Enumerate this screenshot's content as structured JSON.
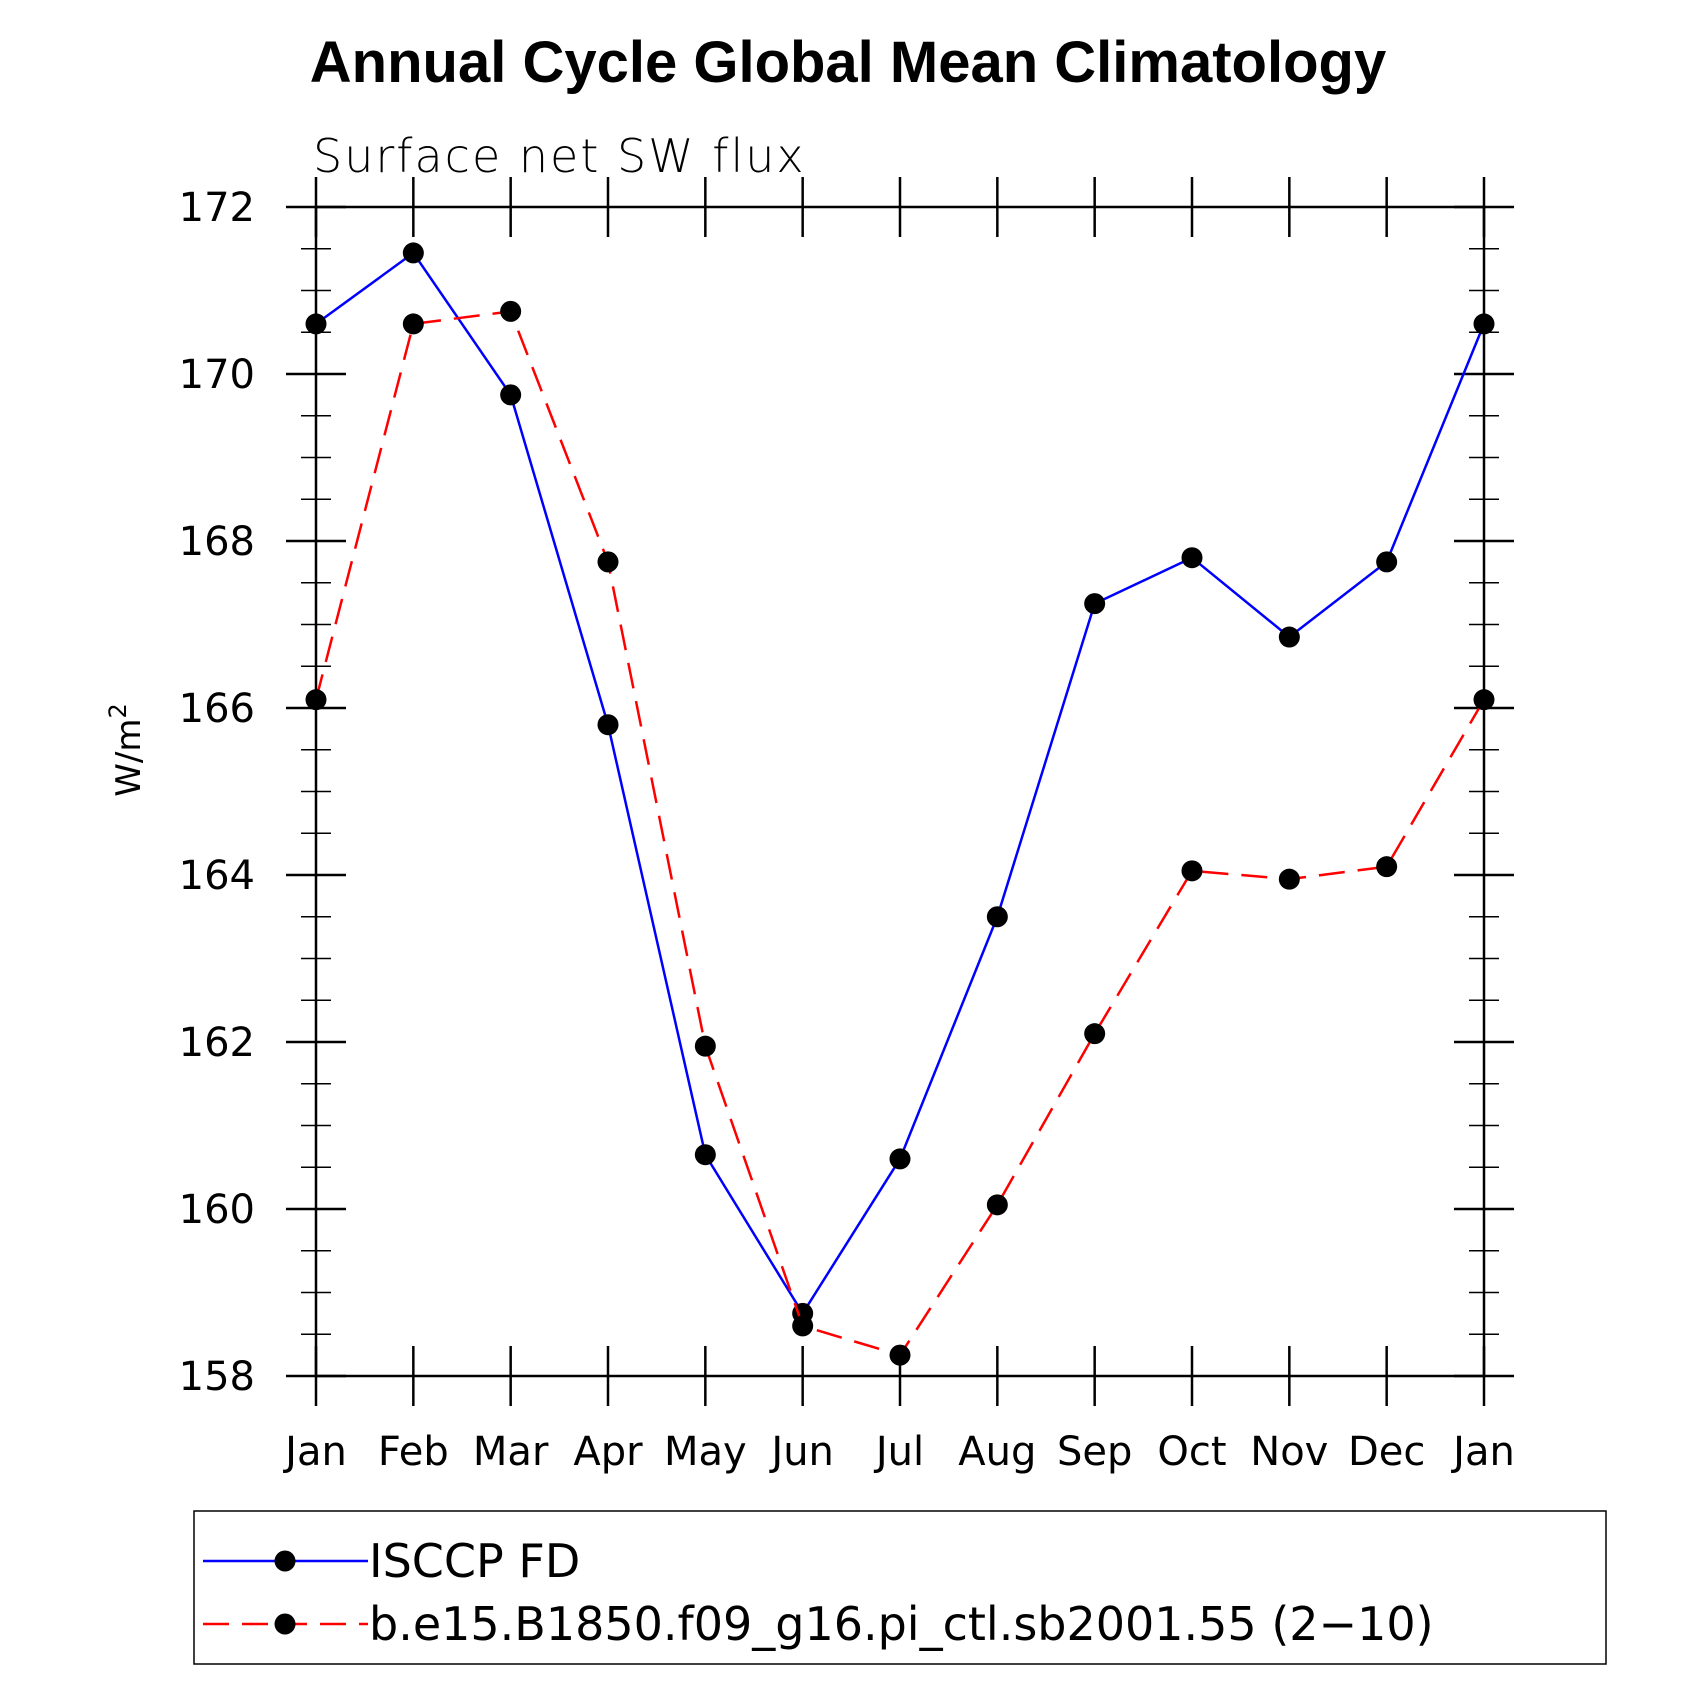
{
  "chart_data": {
    "type": "line",
    "title": "Annual Cycle Global Mean Climatology",
    "subtitle": "Surface net SW flux",
    "ylabel": "W/m",
    "ylabel_superscript": "2",
    "ylim": [
      158,
      172
    ],
    "y_ticks": [
      158,
      160,
      162,
      164,
      166,
      168,
      170,
      172
    ],
    "categories": [
      "Jan",
      "Feb",
      "Mar",
      "Apr",
      "May",
      "Jun",
      "Jul",
      "Aug",
      "Sep",
      "Oct",
      "Nov",
      "Dec",
      "Jan"
    ],
    "grid": false,
    "legend_placement": "bottom",
    "series": [
      {
        "name": "ISCCP FD",
        "color": "#0000ff",
        "dash": "solid",
        "values": [
          170.6,
          171.45,
          169.75,
          165.8,
          160.65,
          158.75,
          160.6,
          163.5,
          167.25,
          167.8,
          166.85,
          167.75,
          170.6
        ]
      },
      {
        "name": "b.e15.B1850.f09_g16.pi_ctl.sb2001.55 (2−10)",
        "color": "#ff0000",
        "dash": "dashed",
        "values": [
          166.1,
          170.6,
          170.75,
          167.75,
          161.95,
          158.6,
          158.25,
          160.05,
          162.1,
          164.05,
          163.95,
          164.1,
          166.1
        ]
      }
    ]
  }
}
